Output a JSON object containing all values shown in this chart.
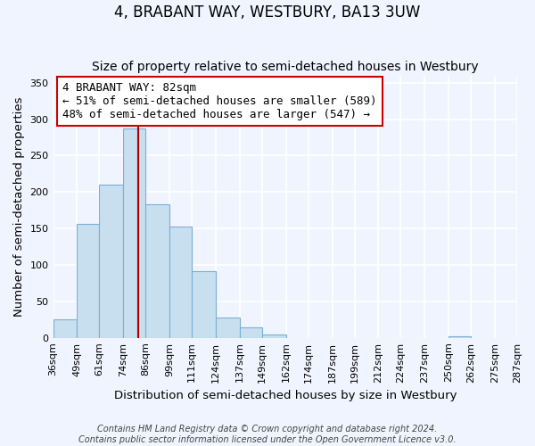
{
  "title": "4, BRABANT WAY, WESTBURY, BA13 3UW",
  "subtitle": "Size of property relative to semi-detached houses in Westbury",
  "xlabel": "Distribution of semi-detached houses by size in Westbury",
  "ylabel": "Number of semi-detached properties",
  "bar_values": [
    25,
    156,
    210,
    287,
    183,
    152,
    91,
    28,
    14,
    5,
    0,
    0,
    0,
    0,
    0,
    0,
    0,
    2,
    0,
    0
  ],
  "bin_edges": [
    36,
    49,
    61,
    74,
    86,
    99,
    111,
    124,
    137,
    149,
    162,
    174,
    187,
    199,
    212,
    224,
    237,
    250,
    262,
    275,
    287
  ],
  "bin_labels": [
    "36sqm",
    "49sqm",
    "61sqm",
    "74sqm",
    "86sqm",
    "99sqm",
    "111sqm",
    "124sqm",
    "137sqm",
    "149sqm",
    "162sqm",
    "174sqm",
    "187sqm",
    "199sqm",
    "212sqm",
    "224sqm",
    "237sqm",
    "250sqm",
    "262sqm",
    "275sqm",
    "287sqm"
  ],
  "property_value": 82,
  "bar_color": "#c8dff0",
  "bar_edge_color": "#7ab0d4",
  "vline_color": "#aa0000",
  "annotation_line1": "4 BRABANT WAY: 82sqm",
  "annotation_line2": "← 51% of semi-detached houses are smaller (589)",
  "annotation_line3": "48% of semi-detached houses are larger (547) →",
  "annotation_box_color": "#ffffff",
  "annotation_box_edge_color": "#cc0000",
  "ylim": [
    0,
    360
  ],
  "yticks": [
    0,
    50,
    100,
    150,
    200,
    250,
    300,
    350
  ],
  "footer_line1": "Contains HM Land Registry data © Crown copyright and database right 2024.",
  "footer_line2": "Contains public sector information licensed under the Open Government Licence v3.0.",
  "bg_color": "#f0f4ff",
  "plot_bg_color": "#f0f4ff",
  "grid_color": "#ffffff",
  "title_fontsize": 12,
  "subtitle_fontsize": 10,
  "axis_label_fontsize": 9.5,
  "tick_fontsize": 8,
  "annotation_fontsize": 9,
  "footer_fontsize": 7
}
